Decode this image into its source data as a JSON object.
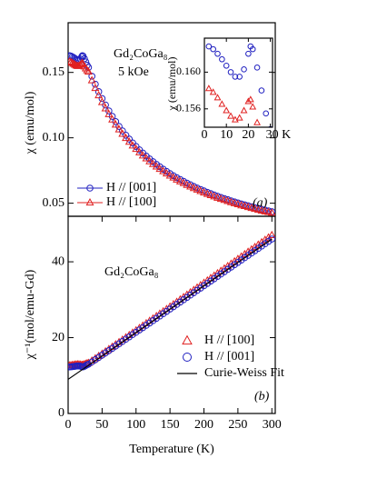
{
  "chart_data": [
    {
      "type": "scatter",
      "annotations": [
        "Gd₂CoGa₈",
        "5 kOe",
        "(a)"
      ],
      "ylabel": "χ (emu/mol)",
      "x": [
        2,
        4,
        6,
        8,
        10,
        12,
        14,
        16,
        18,
        20,
        21,
        22,
        24,
        26,
        28,
        30,
        35,
        40,
        45,
        50,
        55,
        60,
        65,
        70,
        75,
        80,
        85,
        90,
        95,
        100,
        105,
        110,
        115,
        120,
        125,
        130,
        135,
        140,
        145,
        150,
        155,
        160,
        165,
        170,
        175,
        180,
        185,
        190,
        195,
        200,
        205,
        210,
        215,
        220,
        225,
        230,
        235,
        240,
        245,
        250,
        255,
        260,
        265,
        270,
        275,
        280,
        285,
        290,
        295,
        300
      ],
      "xlim": [
        0,
        305
      ],
      "ylim": [
        0.04,
        0.188
      ],
      "yticks": [
        0.05,
        {
          "value": 0.1,
          "label": "0.10"
        },
        0.15
      ],
      "series": [
        {
          "name": "H // [001]",
          "color": "#2020c0",
          "marker": "circle",
          "values": [
            0.1628,
            0.1625,
            0.162,
            0.1614,
            0.1607,
            0.16,
            0.1595,
            0.1595,
            0.1603,
            0.162,
            0.1628,
            0.1625,
            0.1605,
            0.158,
            0.1555,
            0.1538,
            0.1471,
            0.141,
            0.1353,
            0.13,
            0.1251,
            0.1206,
            0.1164,
            0.1124,
            0.1087,
            0.1053,
            0.102,
            0.099,
            0.0961,
            0.0934,
            0.0908,
            0.0883,
            0.086,
            0.0838,
            0.0817,
            0.0797,
            0.0778,
            0.076,
            0.0743,
            0.0726,
            0.071,
            0.0695,
            0.0681,
            0.0667,
            0.0653,
            0.0641,
            0.0628,
            0.0616,
            0.0605,
            0.0594,
            0.0583,
            0.0573,
            0.0563,
            0.0553,
            0.0544,
            0.0535,
            0.0527,
            0.0518,
            0.051,
            0.0502,
            0.0494,
            0.0487,
            0.048,
            0.0473,
            0.0466,
            0.0459,
            0.0453,
            0.0447,
            0.0441,
            0.0435
          ]
        },
        {
          "name": "H // [100]",
          "color": "#e02020",
          "marker": "triangle",
          "values": [
            0.1582,
            0.1578,
            0.1572,
            0.1565,
            0.1558,
            0.1552,
            0.1548,
            0.155,
            0.1558,
            0.1568,
            0.157,
            0.1562,
            0.1545,
            0.153,
            0.1515,
            0.1505,
            0.1439,
            0.138,
            0.1324,
            0.1272,
            0.1224,
            0.118,
            0.1139,
            0.11,
            0.1064,
            0.103,
            0.0998,
            0.0969,
            0.094,
            0.0914,
            0.0888,
            0.0864,
            0.0842,
            0.082,
            0.0799,
            0.078,
            0.0761,
            0.0744,
            0.0727,
            0.071,
            0.0695,
            0.068,
            0.0666,
            0.0653,
            0.0639,
            0.0627,
            0.0615,
            0.0603,
            0.0592,
            0.0581,
            0.057,
            0.0561,
            0.0551,
            0.0541,
            0.0532,
            0.0524,
            0.0516,
            0.0507,
            0.0499,
            0.0491,
            0.0483,
            0.0477,
            0.047,
            0.0463,
            0.0456,
            0.0449,
            0.0443,
            0.0437,
            0.0432,
            0.0426
          ]
        }
      ]
    },
    {
      "type": "inset",
      "ylabel": "χ (emu/mol)",
      "xlim": [
        0,
        31
      ],
      "ylim": [
        0.154,
        0.1637
      ],
      "xticks": [
        0,
        10,
        20,
        {
          "value": 30,
          "label": "30 K"
        }
      ],
      "yticks": [
        0.156,
        {
          "value": 0.16,
          "label": "0.160"
        }
      ]
    },
    {
      "type": "scatter",
      "annotations": [
        "Gd₂CoGa₈",
        "(b)"
      ],
      "xlabel": "Temperature (K)",
      "ylabel": "χ⁻¹(mol/emu-Gd)",
      "x": [
        2,
        4,
        6,
        8,
        10,
        12,
        14,
        16,
        18,
        20,
        21,
        22,
        24,
        26,
        28,
        30,
        35,
        40,
        45,
        50,
        55,
        60,
        65,
        70,
        75,
        80,
        85,
        90,
        95,
        100,
        105,
        110,
        115,
        120,
        125,
        130,
        135,
        140,
        145,
        150,
        155,
        160,
        165,
        170,
        175,
        180,
        185,
        190,
        195,
        200,
        205,
        210,
        215,
        220,
        225,
        230,
        235,
        240,
        245,
        250,
        255,
        260,
        265,
        270,
        275,
        280,
        285,
        290,
        295,
        300
      ],
      "xlim": [
        0,
        305
      ],
      "ylim": [
        0,
        52
      ],
      "xticks": [
        0,
        50,
        100,
        150,
        200,
        250,
        300
      ],
      "yticks": [
        0,
        20,
        40
      ],
      "series": [
        {
          "name": "H // [100]",
          "color": "#e02020",
          "marker": "triangle",
          "values": [
            12.64,
            12.67,
            12.72,
            12.78,
            12.84,
            12.89,
            12.92,
            12.9,
            12.84,
            12.76,
            12.74,
            12.8,
            12.94,
            13.07,
            13.2,
            13.29,
            13.9,
            14.5,
            15.12,
            15.72,
            16.33,
            16.94,
            17.56,
            18.18,
            18.79,
            19.42,
            20.03,
            20.65,
            21.28,
            21.89,
            22.51,
            23.14,
            23.76,
            24.38,
            25.02,
            25.64,
            26.27,
            26.89,
            27.51,
            28.15,
            28.77,
            29.39,
            30.03,
            30.65,
            31.28,
            31.91,
            32.53,
            33.16,
            33.79,
            34.42,
            35.04,
            35.68,
            36.3,
            36.93,
            37.57,
            38.19,
            38.83,
            39.45,
            40.08,
            40.71,
            41.34,
            41.97,
            42.6,
            43.23,
            43.85,
            44.49,
            45.12,
            45.74,
            46.38,
            47.0
          ]
        },
        {
          "name": "H // [001]",
          "color": "#2020c0",
          "marker": "circle",
          "values": [
            12.29,
            12.31,
            12.35,
            12.39,
            12.45,
            12.5,
            12.54,
            12.54,
            12.48,
            12.35,
            12.29,
            12.31,
            12.46,
            12.66,
            12.86,
            13.0,
            13.6,
            14.19,
            14.79,
            15.38,
            15.98,
            16.58,
            17.18,
            17.79,
            18.39,
            19.0,
            19.6,
            20.21,
            20.82,
            21.42,
            22.03,
            22.64,
            23.25,
            23.86,
            24.48,
            25.09,
            25.7,
            26.31,
            26.92,
            27.54,
            28.15,
            28.76,
            29.38,
            29.99,
            30.61,
            31.22,
            31.83,
            32.45,
            33.06,
            33.68,
            34.29,
            34.91,
            35.52,
            36.14,
            36.76,
            37.37,
            37.99,
            38.6,
            39.22,
            39.83,
            40.45,
            41.07,
            41.68,
            42.3,
            42.91,
            43.53,
            44.15,
            44.76,
            45.38,
            45.99
          ]
        },
        {
          "name": "Curie-Weiss Fit",
          "color": "#000000",
          "marker": "line",
          "x": [
            0,
            300
          ],
          "values": [
            9.0,
            46.0
          ]
        }
      ]
    }
  ]
}
